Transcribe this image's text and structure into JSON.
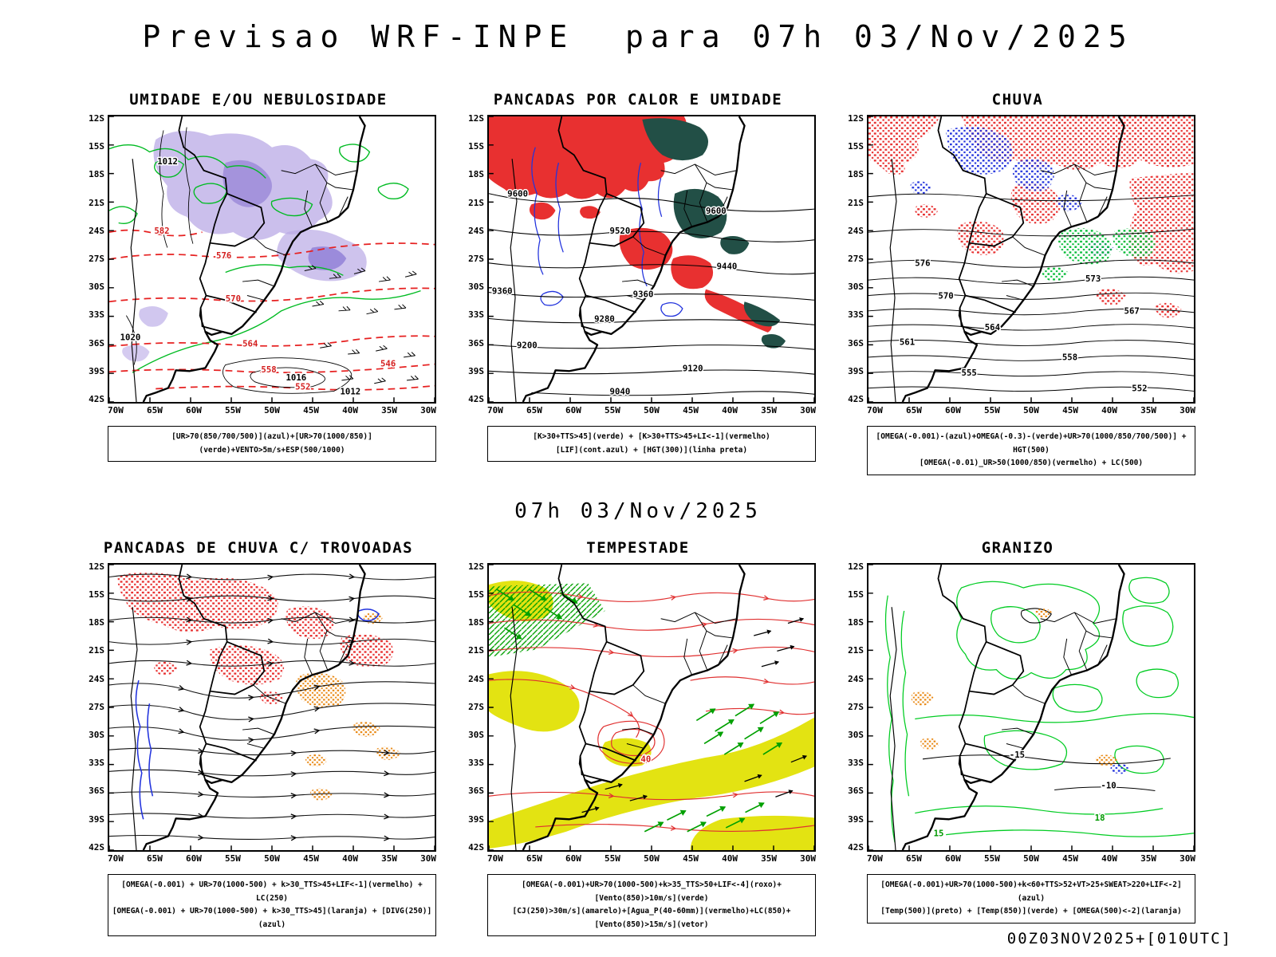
{
  "page": {
    "title": "Previsao WRF-INPE  para 07h 03/Nov/2025",
    "middle_label": "07h 03/Nov/2025",
    "footer": "00Z03NOV2025+[010UTC]"
  },
  "axes": {
    "lat_ticks": [
      "12S",
      "15S",
      "18S",
      "21S",
      "24S",
      "27S",
      "30S",
      "33S",
      "36S",
      "39S",
      "42S"
    ],
    "lon_ticks": [
      "70W",
      "65W",
      "60W",
      "55W",
      "50W",
      "45W",
      "40W",
      "35W",
      "30W"
    ]
  },
  "palette": {
    "red": "#e83030",
    "green": "#00bb22",
    "blue": "#2233dd",
    "purple_shade": "#b9a9e6",
    "purple_deep": "#9a88d8",
    "teal": "#224f46",
    "yellow": "#e3e312",
    "orange": "#e8860f",
    "black": "#000000"
  },
  "panels": [
    {
      "title": "UMIDADE E/OU NEBULOSIDADE",
      "legend_lines": [
        "[UR>70(850/700/500)](azul)+[UR>70(1000/850)](verde)+VENTO>5m/s+ESP(500/1000)"
      ],
      "contour_labels_red": [
        "582",
        "576",
        "570",
        "564",
        "558",
        "552",
        "546"
      ],
      "contour_labels_black": [
        "1012",
        "1016",
        "1012",
        "1020"
      ]
    },
    {
      "title": "PANCADAS POR CALOR E UMIDADE",
      "legend_lines": [
        "[K>30+TTS>45](verde) + [K>30+TTS>45+LI<-1](vermelho)",
        "[LIF](cont.azul) + [HGT(300)](linha preta)"
      ],
      "contour_labels_black": [
        "9600",
        "9520",
        "9600",
        "9440",
        "9360",
        "9360",
        "9280",
        "9200",
        "9120",
        "9040"
      ]
    },
    {
      "title": "CHUVA",
      "legend_lines": [
        "[OMEGA(-0.001)-(azul)+OMEGA(-0.3)-(verde)+UR>70(1000/850/700/500)] + HGT(500)",
        "[OMEGA(-0.01)_UR>50(1000/850)(vermelho) + LC(500)"
      ],
      "contour_labels_black": [
        "576",
        "573",
        "570",
        "567",
        "564",
        "561",
        "558",
        "555",
        "552"
      ]
    },
    {
      "title": "PANCADAS DE CHUVA C/ TROVOADAS",
      "legend_lines": [
        "[OMEGA(-0.001) + UR>70(1000-500) + k>30_TTS>45+LIF<-1](vermelho) + LC(250)",
        "[OMEGA(-0.001) + UR>70(1000-500) + k>30_TTS>45](laranja) + [DIVG(250)](azul)"
      ]
    },
    {
      "title": "TEMPESTADE",
      "legend_lines": [
        "[OMEGA(-0.001)+UR>70(1000-500)+k>35_TTS>50+LIF<-4](roxo)+[Vento(850)>10m/s](verde)",
        "[CJ(250)>30m/s](amarelo)+[Agua_P(40-60mm)](vermelho)+LC(850)+[Vento(850)>15m/s](vetor)"
      ],
      "contour_labels_red": [
        "40"
      ]
    },
    {
      "title": "GRANIZO",
      "legend_lines": [
        "[OMEGA(-0.001)+UR>70(1000-500)+k<60+TTS>52+VT>25+SWEAT>220+LIF<-2](azul)",
        "[Temp(500)](preto) + [Temp(850)](verde) + [OMEGA(500)<-2](laranja)"
      ],
      "contour_labels_black": [
        "-15",
        "-10"
      ],
      "contour_labels_green": [
        "18",
        "15"
      ]
    }
  ]
}
